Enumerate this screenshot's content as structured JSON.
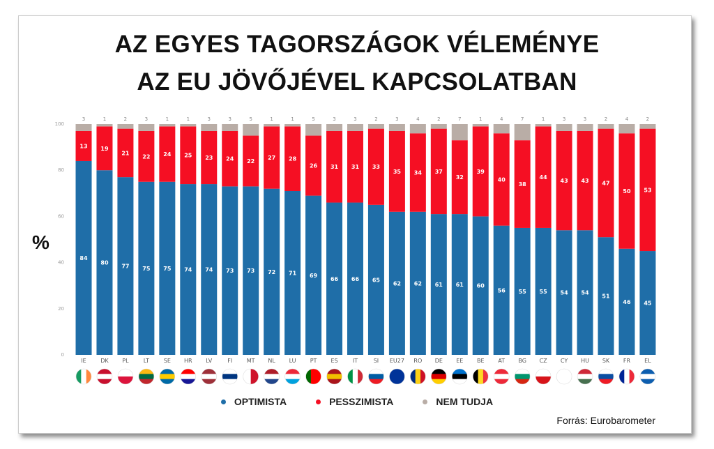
{
  "title_line1": "AZ EGYES TAGORSZÁGOK VÉLEMÉNYE",
  "title_line2": "AZ EU JÖVŐJÉVEL KAPCSOLATBAN",
  "y_unit": "%",
  "source": "Forrás: Eurobarometer",
  "colors": {
    "optimista": "#1f6ea8",
    "pesszimista": "#f50f23",
    "nem_tudja": "#b9ada6"
  },
  "legend": [
    {
      "label": "OPTIMISTA",
      "color": "#1f6ea8"
    },
    {
      "label": "PESSZIMISTA",
      "color": "#f50f23"
    },
    {
      "label": "NEM TUDJA",
      "color": "#b9ada6"
    }
  ],
  "chart_data": {
    "type": "bar",
    "stacked": true,
    "title": "AZ EGYES TAGORSZÁGOK VÉLEMÉNYE AZ EU JÖVŐJÉVEL KAPCSOLATBAN",
    "ylabel": "%",
    "ylim": [
      0,
      100
    ],
    "yticks": [
      0,
      20,
      40,
      60,
      80,
      100
    ],
    "grid": false,
    "legend_position": "bottom",
    "categories": [
      "IE",
      "DK",
      "PL",
      "LT",
      "SE",
      "HR",
      "LV",
      "FI",
      "MT",
      "NL",
      "LU",
      "PT",
      "ES",
      "IT",
      "SI",
      "EU27",
      "RO",
      "DE",
      "EE",
      "BE",
      "AT",
      "BG",
      "CZ",
      "CY",
      "HU",
      "SK",
      "FR",
      "EL"
    ],
    "series": [
      {
        "name": "OPTIMISTA",
        "values": [
          84,
          80,
          77,
          75,
          75,
          74,
          74,
          73,
          73,
          72,
          71,
          69,
          66,
          66,
          65,
          62,
          62,
          61,
          61,
          60,
          56,
          55,
          55,
          54,
          54,
          51,
          46,
          45
        ]
      },
      {
        "name": "PESSZIMISTA",
        "values": [
          13,
          19,
          21,
          22,
          24,
          25,
          23,
          24,
          22,
          27,
          28,
          26,
          31,
          31,
          33,
          35,
          34,
          37,
          32,
          39,
          40,
          38,
          44,
          43,
          43,
          47,
          50,
          53
        ]
      },
      {
        "name": "NEM TUDJA",
        "values": [
          3,
          1,
          2,
          3,
          1,
          1,
          3,
          3,
          5,
          1,
          1,
          5,
          3,
          3,
          2,
          3,
          4,
          2,
          7,
          1,
          4,
          7,
          1,
          3,
          3,
          2,
          4,
          2
        ]
      }
    ]
  },
  "flags": [
    {
      "c": [
        "#169b62",
        "#ffffff",
        "#ff883e"
      ],
      "d": "v"
    },
    {
      "c": [
        "#c8102e",
        "#ffffff",
        "#c8102e"
      ],
      "d": "h"
    },
    {
      "c": [
        "#ffffff",
        "#dc143c"
      ],
      "d": "h"
    },
    {
      "c": [
        "#fdb913",
        "#006a44",
        "#c1272d"
      ],
      "d": "h"
    },
    {
      "c": [
        "#006aa7",
        "#fecc00",
        "#006aa7"
      ],
      "d": "h"
    },
    {
      "c": [
        "#ff0000",
        "#ffffff",
        "#171796"
      ],
      "d": "h"
    },
    {
      "c": [
        "#9e3039",
        "#ffffff",
        "#9e3039"
      ],
      "d": "h"
    },
    {
      "c": [
        "#ffffff",
        "#003580",
        "#ffffff"
      ],
      "d": "h"
    },
    {
      "c": [
        "#ffffff",
        "#cf142b"
      ],
      "d": "v"
    },
    {
      "c": [
        "#ae1c28",
        "#ffffff",
        "#21468b"
      ],
      "d": "h"
    },
    {
      "c": [
        "#ed2939",
        "#ffffff",
        "#00a1de"
      ],
      "d": "h"
    },
    {
      "c": [
        "#006600",
        "#ff0000",
        "#ff0000"
      ],
      "d": "v"
    },
    {
      "c": [
        "#aa151b",
        "#f1bf00",
        "#aa151b"
      ],
      "d": "h"
    },
    {
      "c": [
        "#009246",
        "#ffffff",
        "#ce2b37"
      ],
      "d": "v"
    },
    {
      "c": [
        "#ffffff",
        "#005da4",
        "#ed1c24"
      ],
      "d": "h"
    },
    {
      "c": [
        "#003399",
        "#003399"
      ],
      "d": "h"
    },
    {
      "c": [
        "#002b7f",
        "#fcd116",
        "#ce1126"
      ],
      "d": "v"
    },
    {
      "c": [
        "#000000",
        "#dd0000",
        "#ffce00"
      ],
      "d": "h"
    },
    {
      "c": [
        "#0072ce",
        "#000000",
        "#ffffff"
      ],
      "d": "h"
    },
    {
      "c": [
        "#000000",
        "#fdda24",
        "#ef3340"
      ],
      "d": "v"
    },
    {
      "c": [
        "#ed2939",
        "#ffffff",
        "#ed2939"
      ],
      "d": "h"
    },
    {
      "c": [
        "#ffffff",
        "#00966e",
        "#d62612"
      ],
      "d": "h"
    },
    {
      "c": [
        "#ffffff",
        "#d7141a"
      ],
      "d": "h"
    },
    {
      "c": [
        "#ffffff",
        "#ffffff"
      ],
      "d": "h"
    },
    {
      "c": [
        "#ce2939",
        "#ffffff",
        "#477050"
      ],
      "d": "h"
    },
    {
      "c": [
        "#ffffff",
        "#0b4ea2",
        "#ee1c25"
      ],
      "d": "h"
    },
    {
      "c": [
        "#002395",
        "#ffffff",
        "#ed2939"
      ],
      "d": "v"
    },
    {
      "c": [
        "#0d5eaf",
        "#ffffff",
        "#0d5eaf"
      ],
      "d": "h"
    }
  ]
}
